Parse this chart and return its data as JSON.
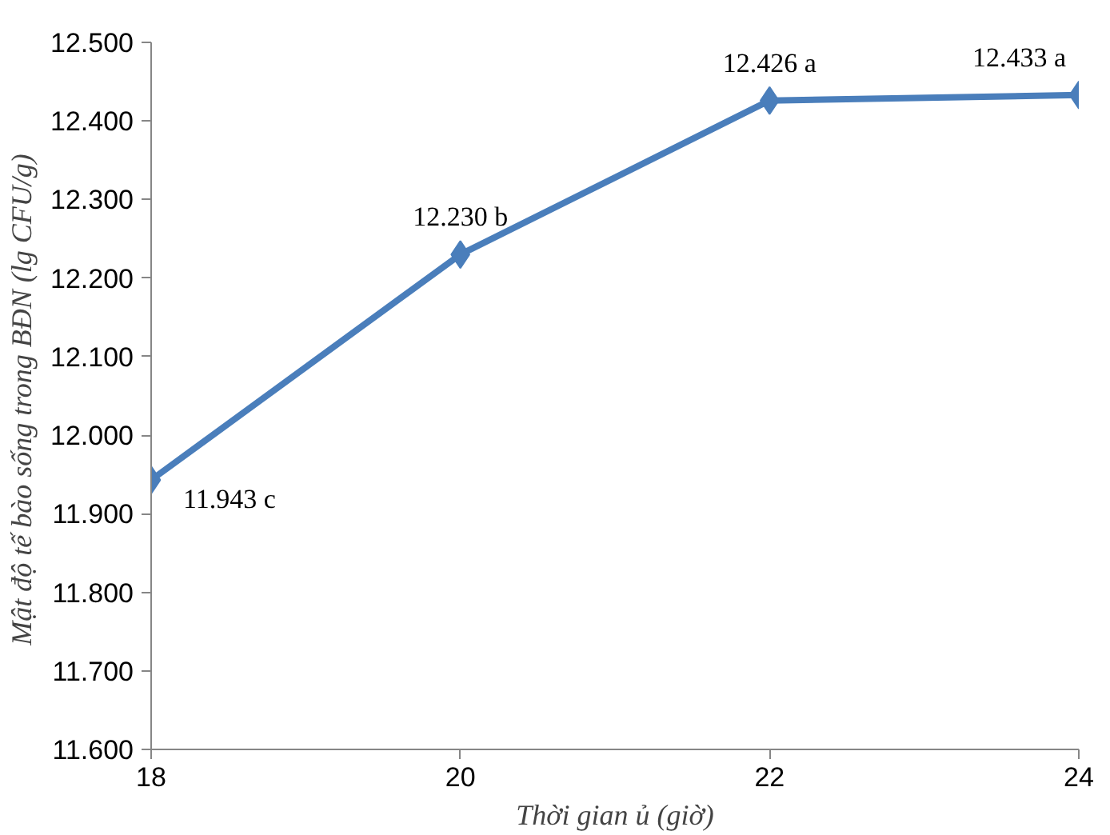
{
  "chart_data": {
    "type": "line",
    "xlabel": "Thời gian ủ (giờ)",
    "ylabel": "Mật độ  tế bào sống trong BĐN (lg CFU/g)",
    "x": [
      18,
      20,
      22,
      24
    ],
    "series": [
      {
        "color": "#4a7ebb",
        "values": [
          11.943,
          12.23,
          12.426,
          12.433
        ],
        "value_labels": [
          "11.943 c",
          "12.230 b",
          "12.426 a",
          "12.433 a"
        ]
      }
    ],
    "xlim": [
      18,
      24
    ],
    "xticks": [
      18,
      20,
      22,
      24
    ],
    "ylim": [
      11.6,
      12.5
    ],
    "yticks": [
      {
        "value": 11.6,
        "label": "11.600"
      },
      {
        "value": 11.7,
        "label": "11.700"
      },
      {
        "value": 11.8,
        "label": "11.800"
      },
      {
        "value": 11.9,
        "label": "11.900"
      },
      {
        "value": 12.0,
        "label": "12.000"
      },
      {
        "value": 12.1,
        "label": "12.100"
      },
      {
        "value": 12.2,
        "label": "12.200"
      },
      {
        "value": 12.3,
        "label": "12.300"
      },
      {
        "value": 12.4,
        "label": "12.400"
      },
      {
        "value": 12.5,
        "label": "12.500"
      }
    ],
    "grid": false,
    "marker": "diamond",
    "line_style": "solid"
  }
}
